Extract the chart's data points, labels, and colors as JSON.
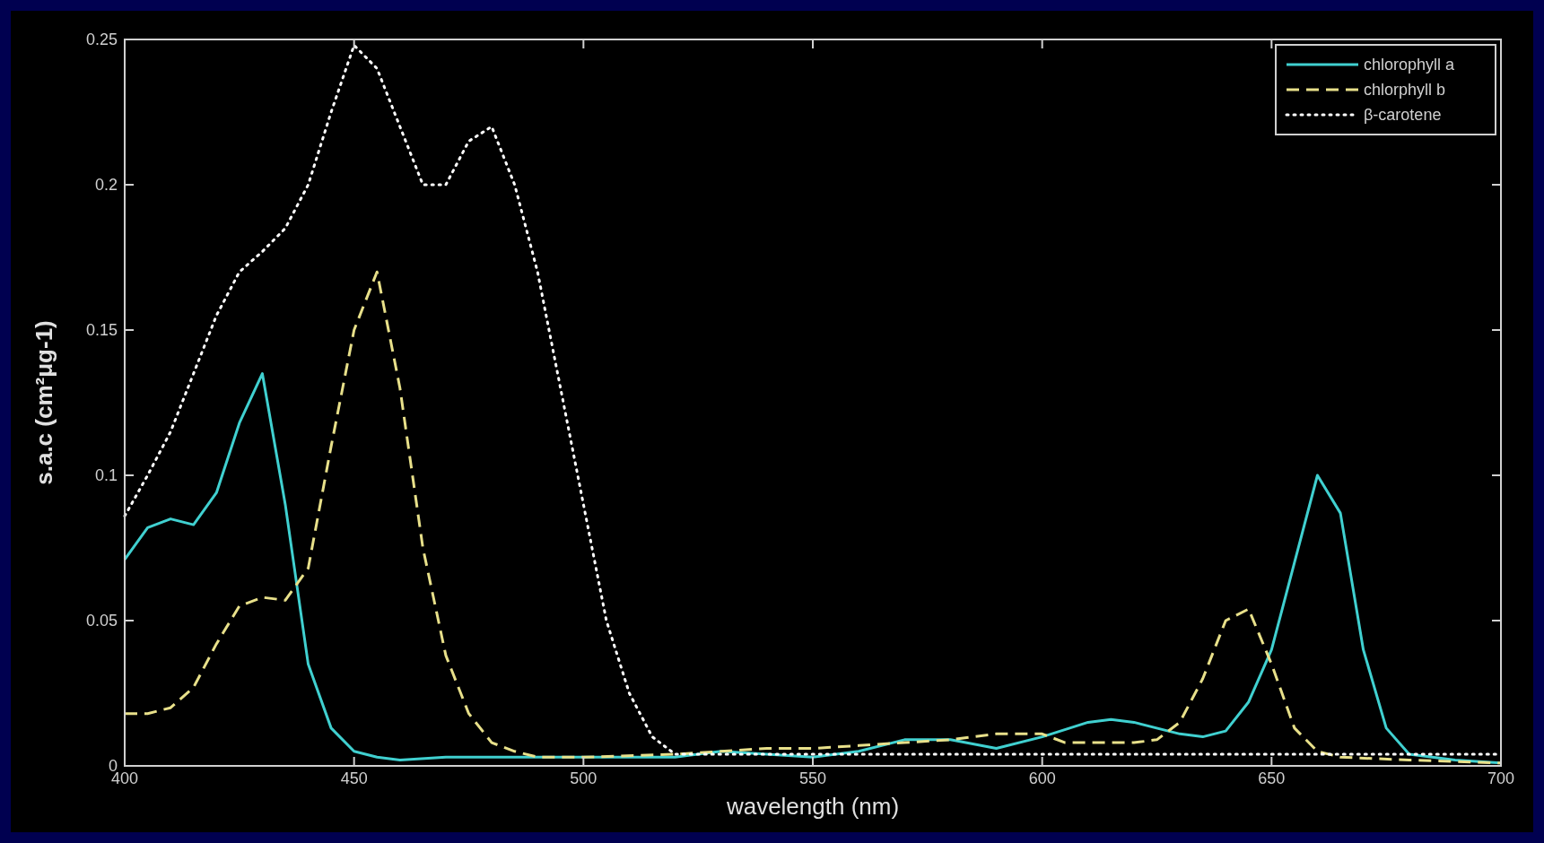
{
  "chart_data": {
    "type": "line",
    "xlabel": "wavelength (nm)",
    "ylabel": "s.a.c (cm²μg-1)",
    "xlim": [
      400,
      700
    ],
    "ylim": [
      0,
      0.25
    ],
    "xticks": [
      400,
      450,
      500,
      550,
      600,
      650,
      700
    ],
    "yticks": [
      0,
      0.05,
      0.1,
      0.15,
      0.2,
      0.25
    ],
    "grid": false,
    "legend": "top right",
    "series": [
      {
        "name": "chlorophyll a",
        "color": "#40d0d0",
        "line_style": "solid",
        "x": [
          400,
          405,
          410,
          415,
          420,
          425,
          430,
          435,
          440,
          445,
          450,
          455,
          460,
          470,
          480,
          490,
          500,
          510,
          520,
          530,
          540,
          550,
          560,
          570,
          580,
          590,
          600,
          610,
          615,
          620,
          630,
          635,
          640,
          645,
          650,
          655,
          660,
          665,
          670,
          675,
          680,
          690,
          700
        ],
        "values": [
          0.071,
          0.082,
          0.085,
          0.083,
          0.094,
          0.118,
          0.135,
          0.09,
          0.035,
          0.013,
          0.005,
          0.003,
          0.002,
          0.003,
          0.003,
          0.003,
          0.003,
          0.003,
          0.003,
          0.005,
          0.004,
          0.003,
          0.005,
          0.009,
          0.009,
          0.006,
          0.01,
          0.015,
          0.016,
          0.015,
          0.011,
          0.01,
          0.012,
          0.022,
          0.04,
          0.07,
          0.1,
          0.087,
          0.04,
          0.013,
          0.004,
          0.002,
          0.001
        ]
      },
      {
        "name": "chlorphyll b",
        "color": "#e8e08a",
        "line_style": "dashed",
        "x": [
          400,
          405,
          410,
          415,
          420,
          425,
          430,
          435,
          440,
          445,
          450,
          455,
          460,
          465,
          470,
          475,
          480,
          485,
          490,
          500,
          520,
          530,
          540,
          550,
          560,
          570,
          580,
          590,
          600,
          605,
          620,
          625,
          630,
          635,
          640,
          645,
          650,
          655,
          660,
          665,
          680,
          700
        ],
        "values": [
          0.018,
          0.018,
          0.02,
          0.027,
          0.042,
          0.055,
          0.058,
          0.057,
          0.068,
          0.11,
          0.15,
          0.17,
          0.13,
          0.075,
          0.038,
          0.018,
          0.008,
          0.005,
          0.003,
          0.003,
          0.004,
          0.005,
          0.006,
          0.006,
          0.007,
          0.008,
          0.009,
          0.011,
          0.011,
          0.008,
          0.008,
          0.009,
          0.015,
          0.03,
          0.05,
          0.054,
          0.035,
          0.013,
          0.005,
          0.003,
          0.002,
          0.001
        ]
      },
      {
        "name": "β-carotene",
        "color": "#ffffff",
        "line_style": "dotted",
        "x": [
          400,
          405,
          410,
          415,
          420,
          425,
          430,
          435,
          440,
          445,
          450,
          455,
          460,
          465,
          470,
          475,
          480,
          485,
          490,
          495,
          500,
          505,
          510,
          515,
          520,
          550,
          600,
          650,
          700
        ],
        "values": [
          0.086,
          0.1,
          0.115,
          0.135,
          0.155,
          0.17,
          0.177,
          0.185,
          0.2,
          0.225,
          0.248,
          0.24,
          0.22,
          0.2,
          0.2,
          0.215,
          0.22,
          0.2,
          0.17,
          0.13,
          0.09,
          0.05,
          0.025,
          0.01,
          0.004,
          0.004,
          0.004,
          0.004,
          0.004
        ]
      }
    ]
  }
}
